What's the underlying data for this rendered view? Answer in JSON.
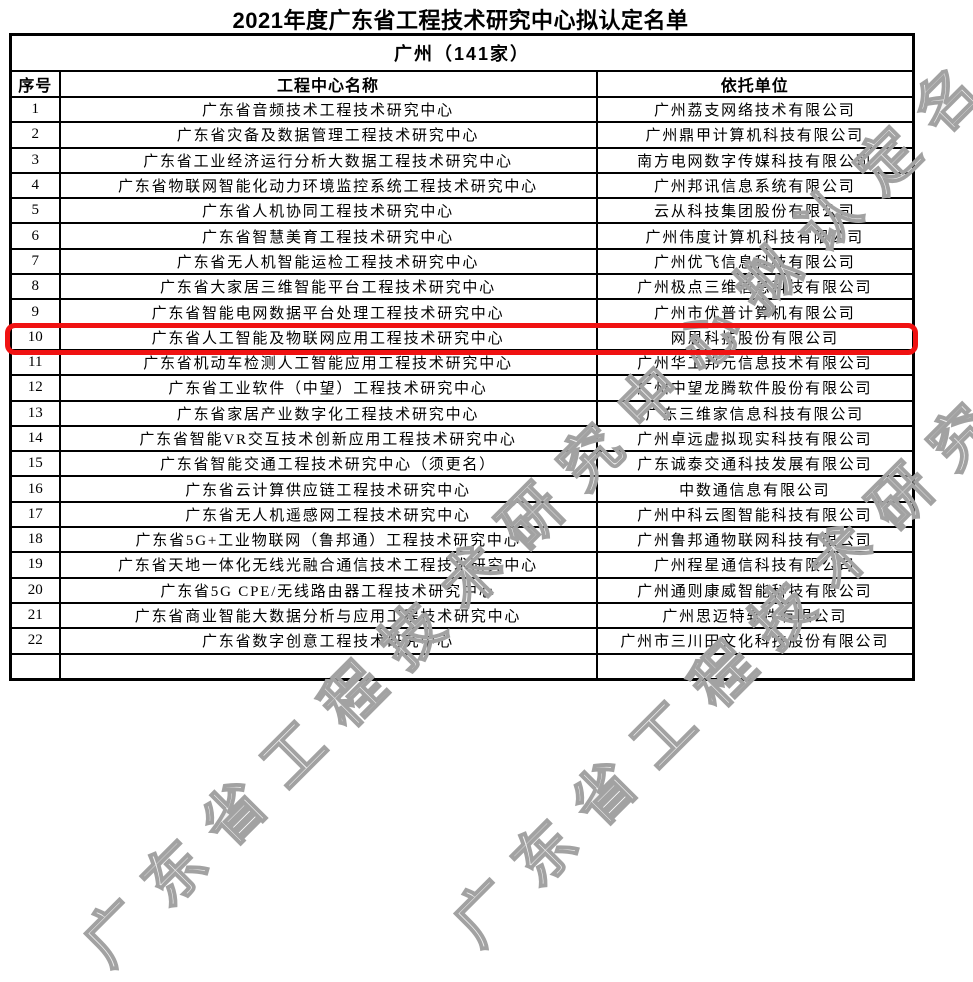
{
  "doc": {
    "title": "2021年度广东省工程技术研究中心拟认定名单",
    "watermark": "广东省工程技术研究中心拟认定名单"
  },
  "table": {
    "group_header": "广州（141家）",
    "columns": [
      "序号",
      "工程中心名称",
      "依托单位"
    ],
    "highlight_row": 10,
    "highlight_color": "#f01212",
    "rows": [
      [
        "1",
        "广东省音频技术工程技术研究中心",
        "广州荔支网络技术有限公司"
      ],
      [
        "2",
        "广东省灾备及数据管理工程技术研究中心",
        "广州鼎甲计算机科技有限公司"
      ],
      [
        "3",
        "广东省工业经济运行分析大数据工程技术研究中心",
        "南方电网数字传媒科技有限公司"
      ],
      [
        "4",
        "广东省物联网智能化动力环境监控系统工程技术研究中心",
        "广州邦讯信息系统有限公司"
      ],
      [
        "5",
        "广东省人机协同工程技术研究中心",
        "云从科技集团股份有限公司"
      ],
      [
        "6",
        "广东省智慧美育工程技术研究中心",
        "广州伟度计算机科技有限公司"
      ],
      [
        "7",
        "广东省无人机智能运检工程技术研究中心",
        "广州优飞信息科技有限公司"
      ],
      [
        "8",
        "广东省大家居三维智能平台工程技术研究中心",
        "广州极点三维信息科技有限公司"
      ],
      [
        "9",
        "广东省智能电网数据平台处理工程技术研究中心",
        "广州市优普计算机有限公司"
      ],
      [
        "10",
        "广东省人工智能及物联网应用工程技术研究中心",
        "网思科技股份有限公司"
      ],
      [
        "11",
        "广东省机动车检测人工智能应用工程技术研究中心",
        "广州华工邦元信息技术有限公司"
      ],
      [
        "12",
        "广东省工业软件（中望）工程技术研究中心",
        "广州中望龙腾软件股份有限公司"
      ],
      [
        "13",
        "广东省家居产业数字化工程技术研究中心",
        "广东三维家信息科技有限公司"
      ],
      [
        "14",
        "广东省智能VR交互技术创新应用工程技术研究中心",
        "广州卓远虚拟现实科技有限公司"
      ],
      [
        "15",
        "广东省智能交通工程技术研究中心（须更名）",
        "广东诚泰交通科技发展有限公司"
      ],
      [
        "16",
        "广东省云计算供应链工程技术研究中心",
        "中数通信息有限公司"
      ],
      [
        "17",
        "广东省无人机遥感网工程技术研究中心",
        "广州中科云图智能科技有限公司"
      ],
      [
        "18",
        "广东省5G+工业物联网（鲁邦通）工程技术研究中心",
        "广州鲁邦通物联网科技有限公司"
      ],
      [
        "19",
        "广东省天地一体化无线光融合通信技术工程技术研究中心",
        "广州程星通信科技有限公司"
      ],
      [
        "20",
        "广东省5G CPE/无线路由器工程技术研究中心",
        "广州通则康威智能科技有限公司"
      ],
      [
        "21",
        "广东省商业智能大数据分析与应用工程技术研究中心",
        "广州思迈特软件有限公司"
      ],
      [
        "22",
        "广东省数字创意工程技术研究中心",
        "广州市三川田文化科技股份有限公司"
      ]
    ]
  }
}
